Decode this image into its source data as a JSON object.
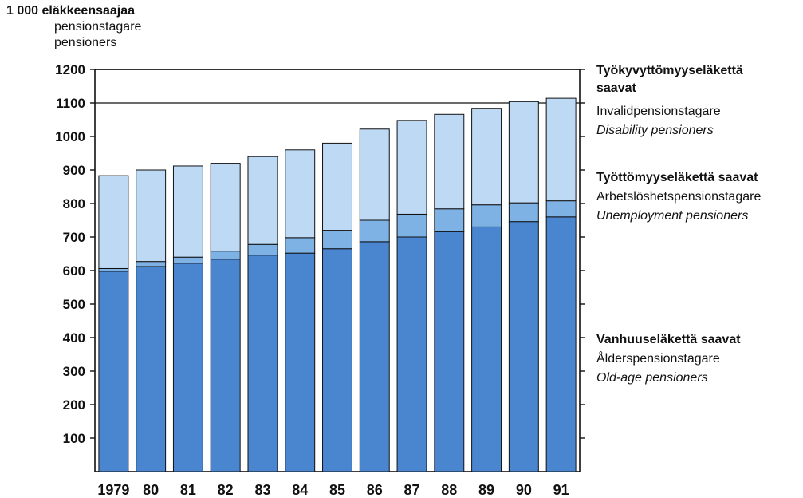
{
  "unit_label": {
    "line1": "1 000 eläkkeensaajaa",
    "line2": "pensionstagare",
    "line3": "pensioners"
  },
  "legend": {
    "disability": {
      "fi_line1": "Työkyvyttömyyseläkettä",
      "fi_line2": "saavat",
      "sv": "Invalidpensionstagare",
      "en": "Disability pensioners"
    },
    "unemployment": {
      "fi": "Työttömyyseläkettä saavat",
      "sv": "Arbetslöshetspensionstagare",
      "en": "Unemployment pensioners"
    },
    "oldage": {
      "fi": "Vanhuuseläkettä saavat",
      "sv": "Ålderspensionstagare",
      "en": "Old-age pensioners"
    }
  },
  "colors": {
    "oldage": "#4a86cf",
    "unemployment": "#7fb2e4",
    "disability": "#bdd9f4",
    "outline": "#111111"
  },
  "chart_data": {
    "type": "bar",
    "stacked": true,
    "categories": [
      "1979",
      "80",
      "81",
      "82",
      "83",
      "84",
      "85",
      "86",
      "87",
      "88",
      "89",
      "90",
      "91"
    ],
    "series": [
      {
        "name": "Vanhuuseläkettä saavat / Ålderspensionstagare / Old-age pensioners",
        "values": [
          598,
          612,
          622,
          634,
          646,
          652,
          665,
          686,
          700,
          716,
          730,
          746,
          760
        ]
      },
      {
        "name": "Työttömyyseläkettä saavat / Arbetslöshetspensionstagare / Unemployment pensioners",
        "values": [
          8,
          15,
          18,
          24,
          32,
          46,
          55,
          64,
          68,
          68,
          66,
          56,
          48
        ]
      },
      {
        "name": "Työkyvyttömyyseläkettä saavat / Invalidpensionstagare / Disability pensioners",
        "values": [
          277,
          273,
          272,
          262,
          262,
          262,
          260,
          272,
          280,
          282,
          288,
          302,
          306
        ]
      }
    ],
    "yticks": [
      100,
      200,
      300,
      400,
      500,
      600,
      700,
      800,
      900,
      1000,
      1100,
      1200
    ],
    "ylim": [
      0,
      1200
    ],
    "gridlines": [
      1100,
      1200
    ]
  }
}
